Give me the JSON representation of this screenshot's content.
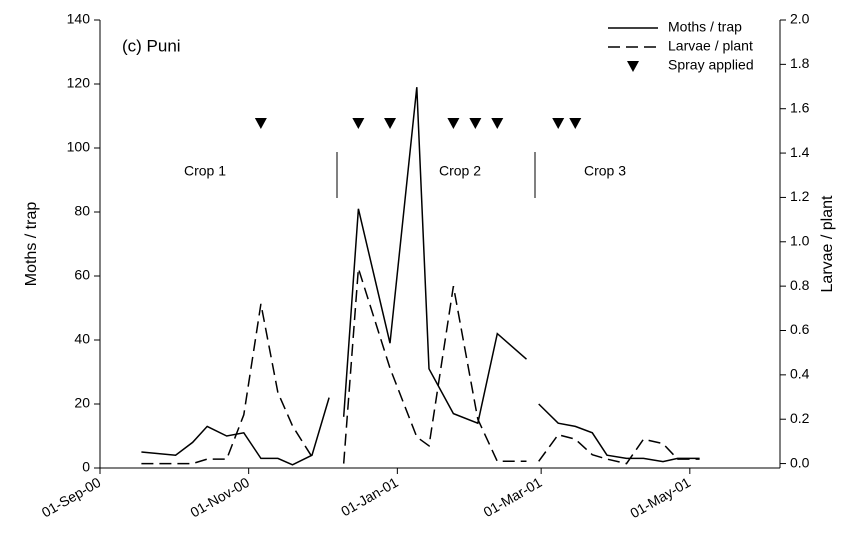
{
  "chart_data": {
    "type": "line",
    "annotation": "(c) Puni",
    "y_label": "Moths / trap",
    "y2_label": "Larvae / plant",
    "crop_labels": [
      "Crop 1",
      "Crop 2",
      "Crop 3"
    ],
    "x": [
      "2000-09-18",
      "2000-10-02",
      "2000-10-09",
      "2000-10-15",
      "2000-10-23",
      "2000-10-30",
      "2000-11-06",
      "2000-11-13",
      "2000-11-19",
      "2000-11-27",
      "2000-12-04",
      "2000-12-07",
      "2000-12-10",
      "2000-12-16",
      "2000-12-29",
      "2001-01-09",
      "2001-01-14",
      "2001-01-24",
      "2001-02-03",
      "2001-02-11",
      "2001-02-23",
      "2001-02-26",
      "2001-02-28",
      "2001-03-08",
      "2001-03-15",
      "2001-03-22",
      "2001-03-28",
      "2001-04-05",
      "2001-04-12",
      "2001-04-20",
      "2001-04-26",
      "2001-05-05"
    ],
    "series": [
      {
        "name": "Moths / trap",
        "color": "#000000",
        "dash": "solid",
        "axis": "y",
        "values": [
          5,
          4,
          8,
          13,
          10,
          11,
          3,
          3,
          1,
          4,
          22,
          null,
          16,
          81,
          39,
          119,
          31,
          17,
          14,
          42,
          34,
          null,
          20,
          14,
          13,
          11,
          4,
          3,
          3,
          2,
          3,
          3
        ]
      },
      {
        "name": "Larvae / plant",
        "color": "#000000",
        "dash": "dashed",
        "axis": "y2",
        "values": [
          0,
          0,
          0,
          0.02,
          0.02,
          0.22,
          0.72,
          0.32,
          0.17,
          0.03,
          null,
          null,
          0,
          0.88,
          0.43,
          0.12,
          0.08,
          0.8,
          0.2,
          0.01,
          0.01,
          null,
          0.01,
          0.13,
          0.11,
          0.04,
          0.02,
          0,
          0.11,
          0.09,
          0.02,
          0.02
        ]
      }
    ],
    "sprays": {
      "name": "Spray applied",
      "color": "#000000",
      "x": [
        "2000-11-06",
        "2000-12-16",
        "2000-12-29",
        "2001-01-24",
        "2001-02-02",
        "2001-02-11",
        "2001-03-08",
        "2001-03-15"
      ]
    },
    "xlim": [
      "2000-09-01",
      "2001-06-07"
    ],
    "xticks": [
      {
        "value": "2000-09-01",
        "label": "01-Sep-00"
      },
      {
        "value": "2000-11-01",
        "label": "01-Nov-00"
      },
      {
        "value": "2001-01-01",
        "label": "01-Jan-01"
      },
      {
        "value": "2001-03-01",
        "label": "01-Mar-01"
      },
      {
        "value": "2001-05-01",
        "label": "01-May-01"
      }
    ],
    "ylim": [
      0,
      140
    ],
    "yticks": [
      0,
      20,
      40,
      60,
      80,
      100,
      120,
      140
    ],
    "y2lim": [
      -0.02,
      2
    ],
    "y2ticks": [
      {
        "value": 0,
        "label": "0.0"
      },
      0.2,
      0.4,
      0.6,
      0.8,
      {
        "value": 1,
        "label": "1.0"
      },
      1.2,
      1.4,
      1.6,
      1.8,
      {
        "value": 2,
        "label": "2.0"
      }
    ],
    "grid": false,
    "legend": "top-right"
  }
}
